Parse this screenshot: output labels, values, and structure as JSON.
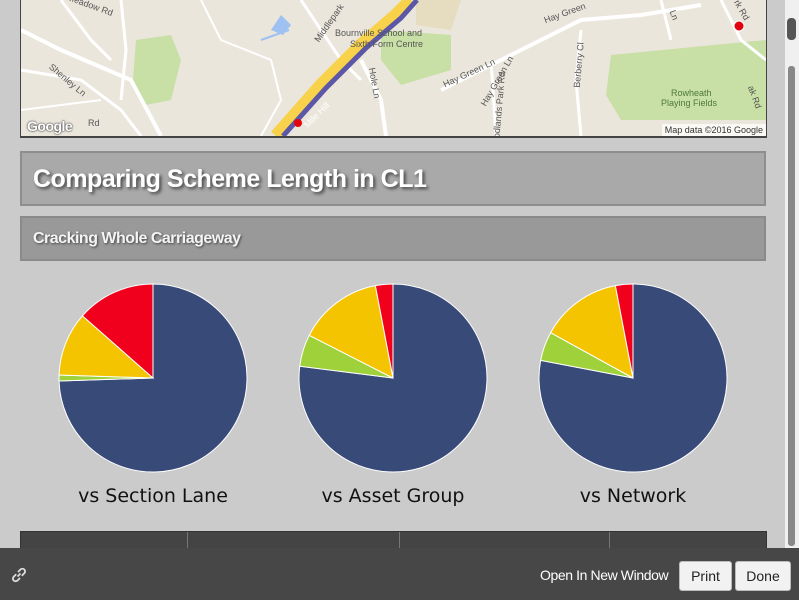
{
  "map": {
    "labels": {
      "meadow_rd": "Meadow Rd",
      "shenley_ln": "Shenley Ln",
      "rd": "Rd",
      "middlepark": "Middlepark",
      "school_1": "Bournville School and",
      "school_2": "Sixth Form Centre",
      "hay_green_ln_top": "Hay Green",
      "hay_green_ln": "Hay Green Ln",
      "hay_green_ln2": "Hay Green Ln",
      "hole_ln": "Hole Ln",
      "woodlands_park_rd": "odlands Park Rd",
      "bilberry_cl": "Berberry Cl",
      "rowheath_1": "Rowheath",
      "rowheath_2": "Playing Fields",
      "mile_hill": "Mile Hill",
      "ln_top": "Ln",
      "rk_rd": "rk Rd",
      "ak_rd": "ak Rd"
    },
    "google_logo": "Google",
    "credit": "Map data ©2016 Google"
  },
  "heading": "Comparing Scheme Length in CL1",
  "subheading": "Cracking Whole Carriageway",
  "colors": {
    "navy": "#374a78",
    "green": "#9fd13a",
    "yellow": "#f5c400",
    "red": "#f0001c"
  },
  "charts": {
    "chart_data": [
      {
        "type": "pie",
        "title": "vs Section Lane",
        "segments": [
          {
            "color": "navy",
            "value": 74.5
          },
          {
            "color": "green",
            "value": 1.0
          },
          {
            "color": "yellow",
            "value": 11.0
          },
          {
            "color": "red",
            "value": 13.5
          }
        ]
      },
      {
        "type": "pie",
        "title": "vs Asset Group",
        "segments": [
          {
            "color": "navy",
            "value": 77.0
          },
          {
            "color": "green",
            "value": 5.5
          },
          {
            "color": "yellow",
            "value": 14.5
          },
          {
            "color": "red",
            "value": 3.0
          }
        ]
      },
      {
        "type": "pie",
        "title": "vs Network",
        "segments": [
          {
            "color": "navy",
            "value": 78.0
          },
          {
            "color": "green",
            "value": 5.0
          },
          {
            "color": "yellow",
            "value": 14.0
          },
          {
            "color": "red",
            "value": 3.0
          }
        ]
      }
    ]
  },
  "footer": {
    "open_new_window": "Open In New Window",
    "print": "Print",
    "done": "Done",
    "link_icon": "link-icon"
  }
}
